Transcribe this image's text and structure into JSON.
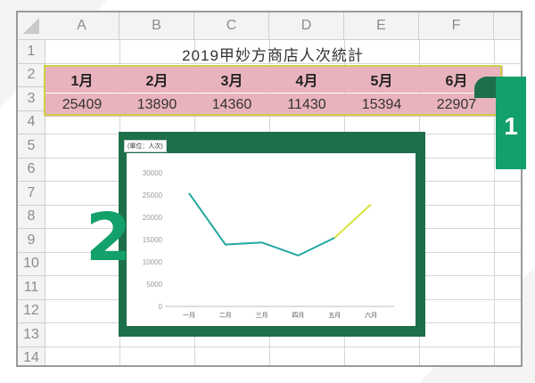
{
  "sheet": {
    "columns": [
      "A",
      "B",
      "C",
      "D",
      "E",
      "F"
    ],
    "rows": [
      "1",
      "2",
      "3",
      "4",
      "5",
      "6",
      "7",
      "8",
      "9",
      "10",
      "11",
      "12",
      "13",
      "14"
    ],
    "title": "2019甲妙方商店人次統計",
    "months": [
      "1月",
      "2月",
      "3月",
      "4月",
      "5月",
      "6月"
    ],
    "values": [
      "25409",
      "13890",
      "14360",
      "11430",
      "15394",
      "22907"
    ]
  },
  "callouts": {
    "one": "1",
    "two": "2"
  },
  "colors": {
    "header_pink": "#e9b3bd",
    "frame_green": "#1d6f49",
    "accent_green": "#13a06a",
    "line_teal": "#20a7a0",
    "line_yellow": "#d9e23a"
  },
  "chart_data": {
    "type": "line",
    "unit_label": "(單位：人次)",
    "categories": [
      "一月",
      "二月",
      "三月",
      "四月",
      "五月",
      "六月"
    ],
    "values": [
      25409,
      13890,
      14360,
      11430,
      15394,
      22907
    ],
    "highlight_last_segment": true,
    "ylim": [
      0,
      30000
    ],
    "yticks": [
      "0",
      "5000",
      "10000",
      "15000",
      "20000",
      "25000",
      "30000"
    ],
    "grid": false
  }
}
